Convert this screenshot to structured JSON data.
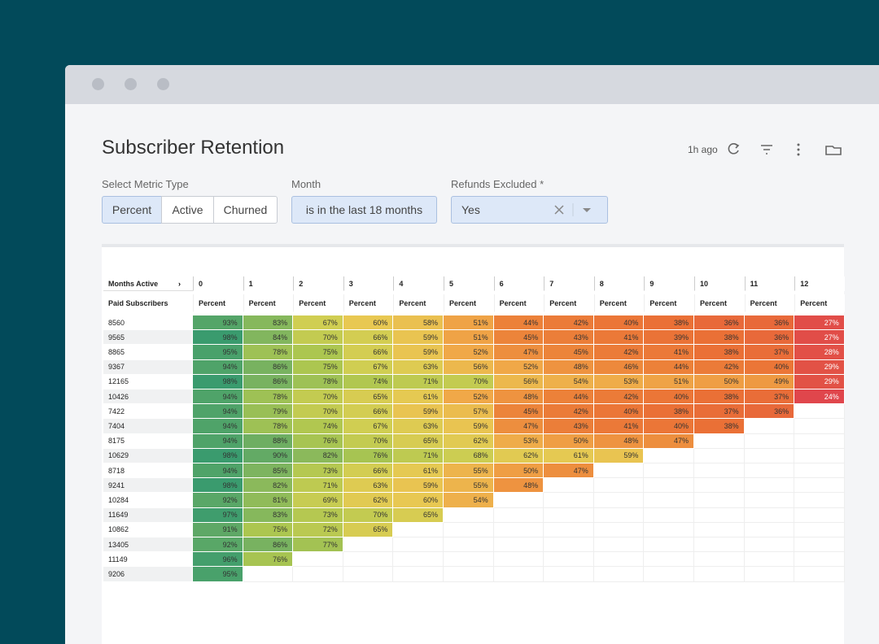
{
  "header": {
    "title": "Subscriber Retention",
    "updated": "1h ago"
  },
  "filters": [
    {
      "label": "Select Metric Type",
      "options": [
        "Percent",
        "Active",
        "Churned"
      ]
    },
    {
      "label": "Month",
      "value": "is in the last 18 months"
    },
    {
      "label": "Refunds Excluded *",
      "value": "Yes"
    }
  ],
  "table": {
    "corner": "Months Active",
    "row_header": "Paid Subscribers",
    "subheader": "Percent",
    "columns": [
      "0",
      "1",
      "2",
      "3",
      "4",
      "5",
      "6",
      "7",
      "8",
      "9",
      "10",
      "11",
      "12"
    ],
    "rows": [
      {
        "subscribers": "8560",
        "values": [
          "93%",
          "83%",
          "67%",
          "60%",
          "58%",
          "51%",
          "44%",
          "42%",
          "40%",
          "38%",
          "36%",
          "36%",
          "27%"
        ]
      },
      {
        "subscribers": "9565",
        "values": [
          "98%",
          "84%",
          "70%",
          "66%",
          "59%",
          "51%",
          "45%",
          "43%",
          "41%",
          "39%",
          "38%",
          "36%",
          "27%"
        ]
      },
      {
        "subscribers": "8865",
        "values": [
          "95%",
          "78%",
          "75%",
          "66%",
          "59%",
          "52%",
          "47%",
          "45%",
          "42%",
          "41%",
          "38%",
          "37%",
          "28%"
        ]
      },
      {
        "subscribers": "9367",
        "values": [
          "94%",
          "86%",
          "75%",
          "67%",
          "63%",
          "56%",
          "52%",
          "48%",
          "46%",
          "44%",
          "42%",
          "40%",
          "29%"
        ]
      },
      {
        "subscribers": "12165",
        "values": [
          "98%",
          "86%",
          "78%",
          "74%",
          "71%",
          "70%",
          "56%",
          "54%",
          "53%",
          "51%",
          "50%",
          "49%",
          "29%"
        ]
      },
      {
        "subscribers": "10426",
        "values": [
          "94%",
          "78%",
          "70%",
          "65%",
          "61%",
          "52%",
          "48%",
          "44%",
          "42%",
          "40%",
          "38%",
          "37%",
          "24%"
        ]
      },
      {
        "subscribers": "7422",
        "values": [
          "94%",
          "79%",
          "70%",
          "66%",
          "59%",
          "57%",
          "45%",
          "42%",
          "40%",
          "38%",
          "37%",
          "36%"
        ]
      },
      {
        "subscribers": "7404",
        "values": [
          "94%",
          "78%",
          "74%",
          "67%",
          "63%",
          "59%",
          "47%",
          "43%",
          "41%",
          "40%",
          "38%"
        ]
      },
      {
        "subscribers": "8175",
        "values": [
          "94%",
          "88%",
          "76%",
          "70%",
          "65%",
          "62%",
          "53%",
          "50%",
          "48%",
          "47%"
        ]
      },
      {
        "subscribers": "10629",
        "values": [
          "98%",
          "90%",
          "82%",
          "76%",
          "71%",
          "68%",
          "62%",
          "61%",
          "59%"
        ]
      },
      {
        "subscribers": "8718",
        "values": [
          "94%",
          "85%",
          "73%",
          "66%",
          "61%",
          "55%",
          "50%",
          "47%"
        ]
      },
      {
        "subscribers": "9241",
        "values": [
          "98%",
          "82%",
          "71%",
          "63%",
          "59%",
          "55%",
          "48%"
        ]
      },
      {
        "subscribers": "10284",
        "values": [
          "92%",
          "81%",
          "69%",
          "62%",
          "60%",
          "54%"
        ]
      },
      {
        "subscribers": "11649",
        "values": [
          "97%",
          "83%",
          "73%",
          "70%",
          "65%"
        ]
      },
      {
        "subscribers": "10862",
        "values": [
          "91%",
          "75%",
          "72%",
          "65%"
        ]
      },
      {
        "subscribers": "13405",
        "values": [
          "92%",
          "86%",
          "77%"
        ]
      },
      {
        "subscribers": "11149",
        "values": [
          "96%",
          "76%"
        ]
      },
      {
        "subscribers": "9206",
        "values": [
          "95%"
        ]
      }
    ]
  }
}
